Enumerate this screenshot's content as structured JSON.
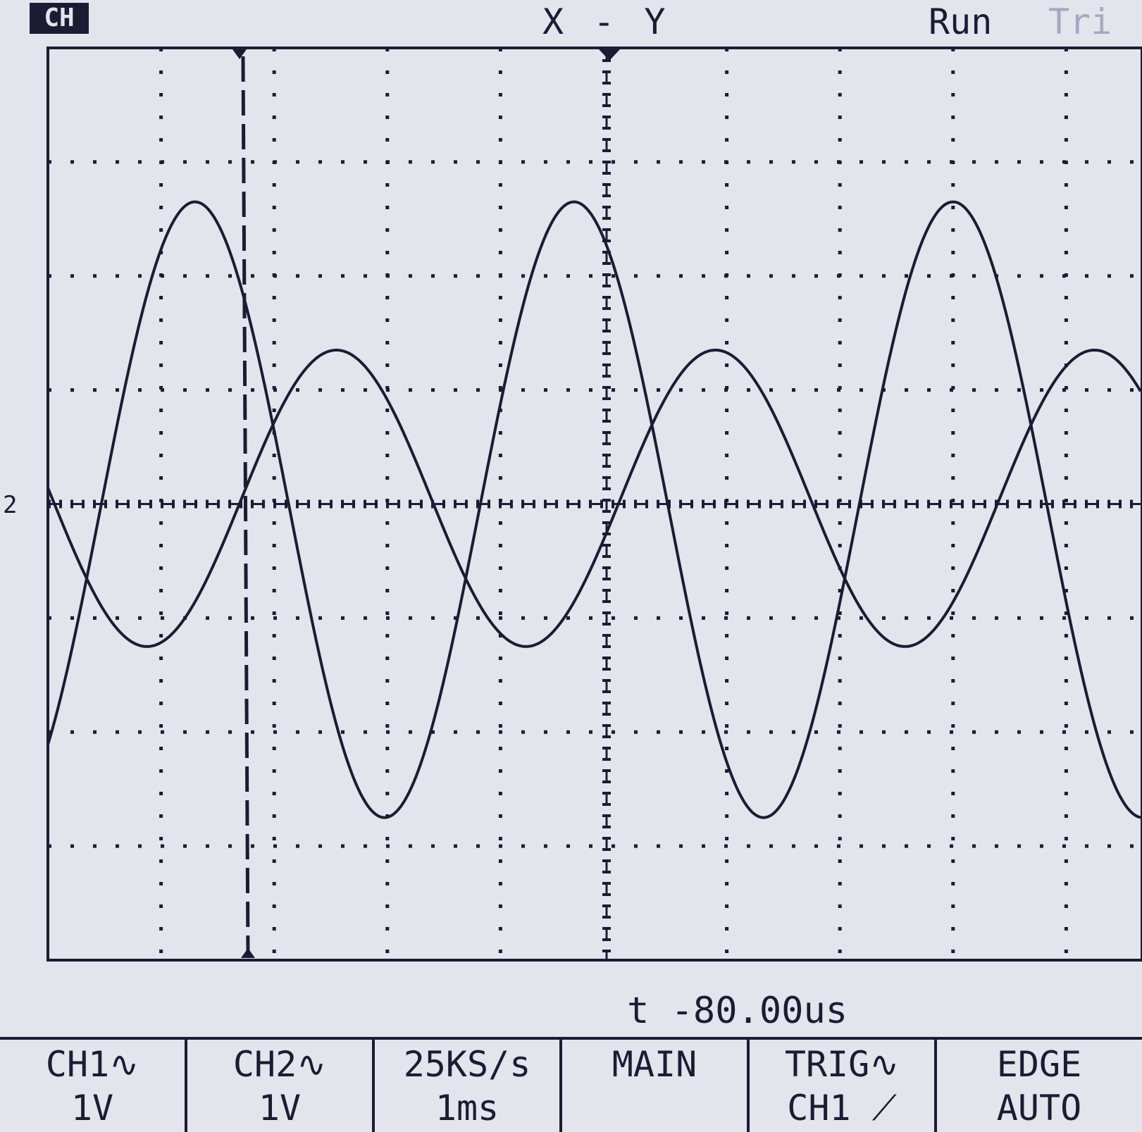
{
  "header": {
    "badge": "CH",
    "mode": "X - Y",
    "run_state": "Run",
    "trig_state": "Tri"
  },
  "readout": {
    "time": "t -80.00us"
  },
  "softkeys": [
    {
      "top": "CH1∿",
      "bottom": "1V"
    },
    {
      "top": "CH2∿",
      "bottom": "1V"
    },
    {
      "top": "25KS/s",
      "bottom": "1ms"
    },
    {
      "top": "MAIN",
      "bottom": ""
    },
    {
      "top": "TRIG∿",
      "bottom": "CH1 ⟋"
    },
    {
      "top": "EDGE",
      "bottom": "AUTO"
    }
  ],
  "colors": {
    "background": "#e4e4ec",
    "trace": "#1b1c34",
    "faded": "#a9a6c2"
  },
  "scope": {
    "divisions_x": 10,
    "divisions_y": 8,
    "traces": [
      {
        "name": "CH1",
        "amplitude_div": 2.7,
        "period_div": 3.35,
        "phase_div": 1.3,
        "offset_div": -0.05
      },
      {
        "name": "CH2",
        "amplitude_div": 1.3,
        "period_div": 3.35,
        "phase_div": 2.55,
        "offset_div": 0.05
      }
    ]
  }
}
